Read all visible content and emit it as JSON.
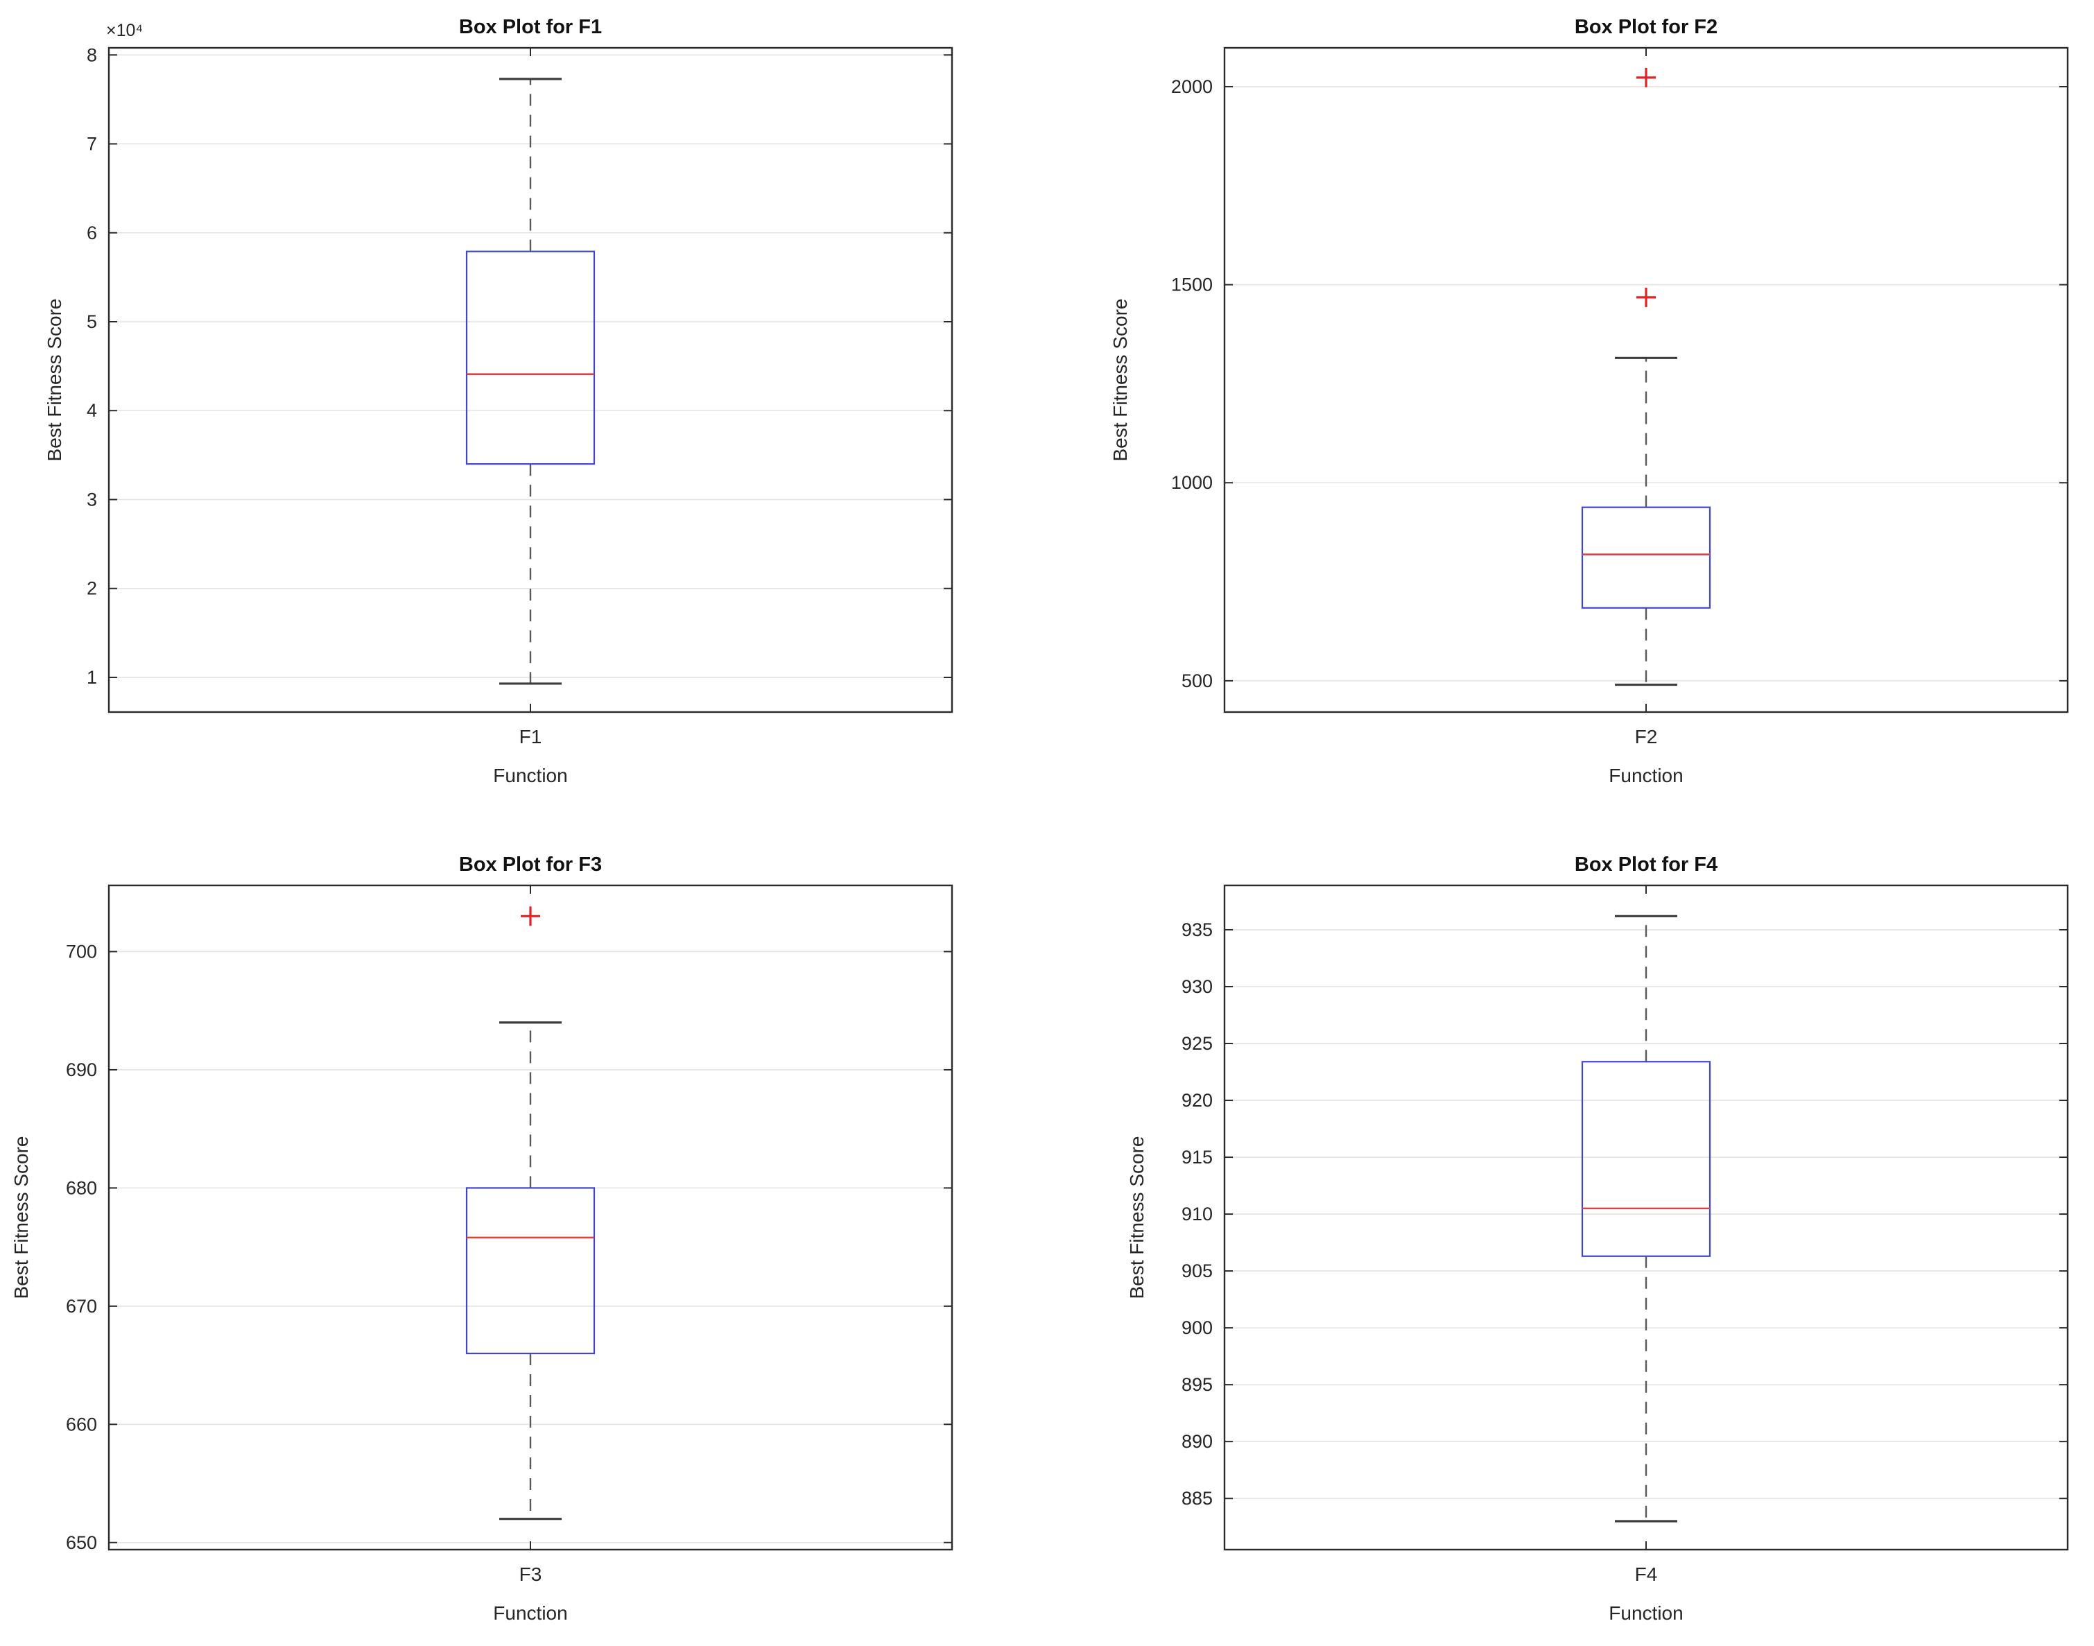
{
  "figure": {
    "background": "#ffffff"
  },
  "colors": {
    "box": "#4146c9",
    "median": "#d84444",
    "whisker": "#595959",
    "cap": "#3d3d3d",
    "outlier": "#e02424",
    "grid": "#e3e3e3",
    "axis": "#2b2b2b",
    "tick_text": "#262626",
    "title_text": "#111111"
  },
  "chart_data": [
    {
      "type": "box",
      "title": "Box Plot for F1",
      "xlabel": "Function",
      "ylabel": "Best Fitness Score",
      "category": "F1",
      "grid": true,
      "ylim": [
        6100,
        80800
      ],
      "yticks": [
        10000,
        20000,
        30000,
        40000,
        50000,
        60000,
        70000,
        80000
      ],
      "ytick_labels": [
        "1",
        "2",
        "3",
        "4",
        "5",
        "6",
        "7",
        "8"
      ],
      "y_multiplier": "×10⁴",
      "box": {
        "whisker_low": 9300,
        "q1": 34000,
        "median": 44100,
        "q3": 57900,
        "whisker_high": 77300,
        "outliers": []
      }
    },
    {
      "type": "box",
      "title": "Box Plot for F2",
      "xlabel": "Function",
      "ylabel": "Best Fitness Score",
      "category": "F2",
      "grid": true,
      "ylim": [
        421,
        2098
      ],
      "yticks": [
        500,
        1000,
        1500,
        2000
      ],
      "ytick_labels": [
        "500",
        "1000",
        "1500",
        "2000"
      ],
      "y_multiplier": null,
      "box": {
        "whisker_low": 490,
        "q1": 684,
        "median": 819,
        "q3": 938,
        "whisker_high": 1315,
        "outliers": [
          1468,
          2023
        ]
      }
    },
    {
      "type": "box",
      "title": "Box Plot for F3",
      "xlabel": "Function",
      "ylabel": "Best Fitness Score",
      "category": "F3",
      "grid": true,
      "ylim": [
        649.4,
        705.6
      ],
      "yticks": [
        650,
        660,
        670,
        680,
        690,
        700
      ],
      "ytick_labels": [
        "650",
        "660",
        "670",
        "680",
        "690",
        "700"
      ],
      "y_multiplier": null,
      "box": {
        "whisker_low": 652,
        "q1": 666,
        "median": 675.8,
        "q3": 680,
        "whisker_high": 694,
        "outliers": [
          703
        ]
      }
    },
    {
      "type": "box",
      "title": "Box Plot for F4",
      "xlabel": "Function",
      "ylabel": "Best Fitness Score",
      "category": "F4",
      "grid": true,
      "ylim": [
        880.5,
        938.9
      ],
      "yticks": [
        885,
        890,
        895,
        900,
        905,
        910,
        915,
        920,
        925,
        930,
        935
      ],
      "ytick_labels": [
        "885",
        "890",
        "895",
        "900",
        "905",
        "910",
        "915",
        "920",
        "925",
        "930",
        "935"
      ],
      "y_multiplier": null,
      "box": {
        "whisker_low": 883,
        "q1": 906.3,
        "median": 910.5,
        "q3": 923.4,
        "whisker_high": 936.2,
        "outliers": []
      }
    }
  ]
}
